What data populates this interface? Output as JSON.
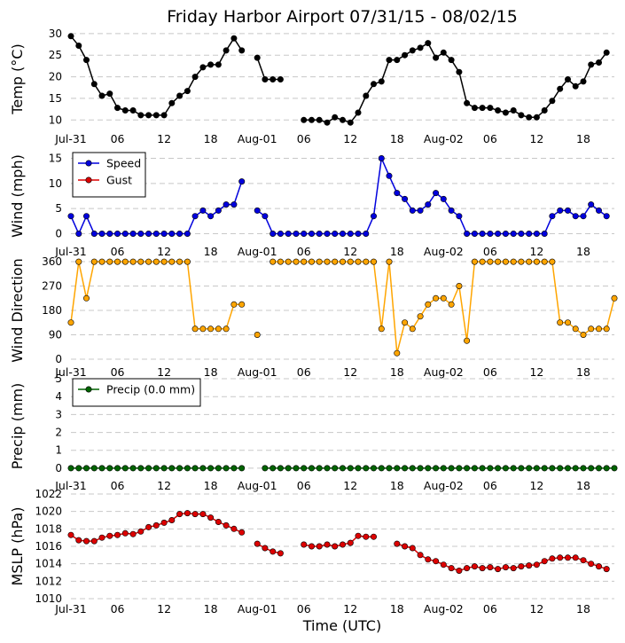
{
  "title": "Friday Harbor Airport 07/31/15 - 08/02/15",
  "xlabel": "Time (UTC)",
  "x_tick_labels": [
    "Jul-31",
    "06",
    "12",
    "18",
    "Aug-01",
    "06",
    "12",
    "18",
    "Aug-02",
    "06",
    "12",
    "18"
  ],
  "x_tick_hours": [
    0,
    6,
    12,
    18,
    24,
    30,
    36,
    42,
    48,
    54,
    60,
    66
  ],
  "x_range_hours": [
    0,
    70
  ],
  "colors": {
    "temp": "#000000",
    "speed": "#0000dd",
    "gust": "#dd0000",
    "dir": "#ffa500",
    "precip": "#006400",
    "mslp": "#dd0000"
  },
  "chart_data": [
    {
      "type": "line",
      "id": "temp",
      "ylabel": "Temp (°C)",
      "ylim": [
        8,
        31
      ],
      "yticks": [
        10,
        15,
        20,
        25,
        30
      ],
      "series": [
        {
          "name": "Temp",
          "x": [
            0,
            1,
            2,
            3,
            4,
            5,
            6,
            7,
            8,
            9,
            10,
            11,
            12,
            13,
            14,
            15,
            16,
            17,
            18,
            19,
            20,
            21,
            22,
            23,
            24,
            25,
            26,
            27,
            28,
            29,
            30,
            31,
            32,
            33,
            34,
            35,
            36,
            37,
            38,
            39,
            40,
            41,
            42,
            43,
            44,
            45,
            46,
            47,
            48,
            49,
            50,
            51,
            52,
            53,
            54,
            55,
            56,
            57,
            58,
            59,
            60,
            61,
            62,
            63,
            64,
            65,
            66,
            67,
            68,
            69,
            70
          ],
          "values": [
            29.4,
            27.2,
            23.9,
            18.3,
            15.6,
            16.1,
            12.8,
            12.2,
            12.2,
            11.1,
            11.1,
            11.1,
            11.1,
            13.9,
            15.6,
            16.7,
            20.0,
            22.2,
            22.8,
            22.8,
            26.1,
            28.9,
            26.1,
            null,
            24.4,
            19.4,
            19.4,
            19.4,
            null,
            null,
            10.0,
            10.0,
            10.0,
            9.4,
            10.6,
            10.0,
            9.4,
            11.7,
            15.6,
            18.3,
            18.9,
            23.9,
            23.9,
            25.0,
            26.1,
            26.7,
            27.8,
            24.4,
            25.6,
            23.9,
            21.1,
            13.9,
            12.8,
            12.8,
            12.8,
            12.2,
            11.7,
            12.2,
            11.1,
            10.6,
            10.6,
            12.2,
            14.4,
            17.2,
            19.4,
            17.8,
            18.9,
            22.8,
            23.3,
            25.6,
            null
          ]
        }
      ]
    },
    {
      "type": "line",
      "id": "wind",
      "ylabel": "Wind (mph)",
      "ylim": [
        -1.5,
        16.5
      ],
      "yticks": [
        0,
        5,
        10,
        15
      ],
      "legend": "top-left",
      "series": [
        {
          "name": "Speed",
          "x": [
            0,
            1,
            2,
            3,
            4,
            5,
            6,
            7,
            8,
            9,
            10,
            11,
            12,
            13,
            14,
            15,
            16,
            17,
            18,
            19,
            20,
            21,
            22,
            23,
            24,
            25,
            26,
            27,
            28,
            29,
            30,
            31,
            32,
            33,
            34,
            35,
            36,
            37,
            38,
            39,
            40,
            41,
            42,
            43,
            44,
            45,
            46,
            47,
            48,
            49,
            50,
            51,
            52,
            53,
            54,
            55,
            56,
            57,
            58,
            59,
            60,
            61,
            62,
            63,
            64,
            65,
            66,
            67,
            68,
            69,
            70
          ],
          "values": [
            3.5,
            0,
            3.5,
            0,
            0,
            0,
            0,
            0,
            0,
            0,
            0,
            0,
            0,
            0,
            0,
            0,
            3.5,
            4.6,
            3.5,
            4.6,
            5.8,
            5.8,
            10.4,
            null,
            4.6,
            3.5,
            0,
            0,
            0,
            0,
            0,
            0,
            0,
            0,
            0,
            0,
            0,
            0,
            0,
            3.5,
            15.0,
            11.5,
            8.1,
            6.9,
            4.6,
            4.6,
            5.8,
            8.1,
            6.9,
            4.6,
            3.5,
            0,
            0,
            0,
            0,
            0,
            0,
            0,
            0,
            0,
            0,
            0,
            3.5,
            4.6,
            4.6,
            3.5,
            3.5,
            5.8,
            4.6,
            3.5,
            null
          ]
        },
        {
          "name": "Gust",
          "x": [],
          "values": []
        }
      ]
    },
    {
      "type": "line",
      "id": "direction",
      "ylabel": "Wind Direction",
      "ylim": [
        -10,
        370
      ],
      "yticks": [
        0,
        90,
        180,
        270,
        360
      ],
      "series": [
        {
          "name": "Direction",
          "x": [
            0,
            1,
            2,
            3,
            4,
            5,
            6,
            7,
            8,
            9,
            10,
            11,
            12,
            13,
            14,
            15,
            16,
            17,
            18,
            19,
            20,
            21,
            22,
            23,
            24,
            25,
            26,
            27,
            28,
            29,
            30,
            31,
            32,
            33,
            34,
            35,
            36,
            37,
            38,
            39,
            40,
            41,
            42,
            43,
            44,
            45,
            46,
            47,
            48,
            49,
            50,
            51,
            52,
            53,
            54,
            55,
            56,
            57,
            58,
            59,
            60,
            61,
            62,
            63,
            64,
            65,
            66,
            67,
            68,
            69,
            70
          ],
          "values": [
            135,
            360,
            225,
            360,
            360,
            360,
            360,
            360,
            360,
            360,
            360,
            360,
            360,
            360,
            360,
            360,
            112,
            112,
            112,
            112,
            112,
            202,
            202,
            null,
            90,
            null,
            360,
            360,
            360,
            360,
            360,
            360,
            360,
            360,
            360,
            360,
            360,
            360,
            360,
            360,
            112,
            360,
            22,
            135,
            112,
            158,
            202,
            225,
            225,
            202,
            270,
            68,
            360,
            360,
            360,
            360,
            360,
            360,
            360,
            360,
            360,
            360,
            360,
            135,
            135,
            112,
            90,
            112,
            112,
            112,
            225
          ]
        }
      ]
    },
    {
      "type": "line",
      "id": "precip",
      "ylabel": "Precip (mm)",
      "ylim": [
        -0.4,
        5.1
      ],
      "yticks": [
        0,
        1,
        2,
        3,
        4,
        5
      ],
      "legend": "top-left",
      "series": [
        {
          "name": "Precip (0.0 mm)",
          "x": [
            0,
            1,
            2,
            3,
            4,
            5,
            6,
            7,
            8,
            9,
            10,
            11,
            12,
            13,
            14,
            15,
            16,
            17,
            18,
            19,
            20,
            21,
            22,
            23,
            24,
            25,
            26,
            27,
            28,
            29,
            30,
            31,
            32,
            33,
            34,
            35,
            36,
            37,
            38,
            39,
            40,
            41,
            42,
            43,
            44,
            45,
            46,
            47,
            48,
            49,
            50,
            51,
            52,
            53,
            54,
            55,
            56,
            57,
            58,
            59,
            60,
            61,
            62,
            63,
            64,
            65,
            66,
            67,
            68,
            69,
            70
          ],
          "values": [
            0,
            0,
            0,
            0,
            0,
            0,
            0,
            0,
            0,
            0,
            0,
            0,
            0,
            0,
            0,
            0,
            0,
            0,
            0,
            0,
            0,
            0,
            0,
            null,
            null,
            0,
            0,
            0,
            0,
            0,
            0,
            0,
            0,
            0,
            0,
            0,
            0,
            0,
            0,
            0,
            0,
            0,
            0,
            0,
            0,
            0,
            0,
            0,
            0,
            0,
            0,
            0,
            0,
            0,
            0,
            0,
            0,
            0,
            0,
            0,
            0,
            0,
            0,
            0,
            0,
            0,
            0,
            0,
            0,
            0,
            0
          ]
        }
      ]
    },
    {
      "type": "line",
      "id": "mslp",
      "ylabel": "MSLP (hPa)",
      "ylim": [
        1010,
        1022
      ],
      "yticks": [
        1010,
        1012,
        1014,
        1016,
        1018,
        1020,
        1022
      ],
      "series": [
        {
          "name": "MSLP",
          "x": [
            0,
            1,
            2,
            3,
            4,
            5,
            6,
            7,
            8,
            9,
            10,
            11,
            12,
            13,
            14,
            15,
            16,
            17,
            18,
            19,
            20,
            21,
            22,
            23,
            24,
            25,
            26,
            27,
            28,
            29,
            30,
            31,
            32,
            33,
            34,
            35,
            36,
            37,
            38,
            39,
            40,
            41,
            42,
            43,
            44,
            45,
            46,
            47,
            48,
            49,
            50,
            51,
            52,
            53,
            54,
            55,
            56,
            57,
            58,
            59,
            60,
            61,
            62,
            63,
            64,
            65,
            66,
            67,
            68,
            69,
            70
          ],
          "values": [
            1017.3,
            1016.7,
            1016.6,
            1016.6,
            1017.0,
            1017.2,
            1017.3,
            1017.5,
            1017.4,
            1017.7,
            1018.2,
            1018.4,
            1018.7,
            1019.0,
            1019.7,
            1019.8,
            1019.7,
            1019.7,
            1019.3,
            1018.8,
            1018.4,
            1018.0,
            1017.6,
            null,
            1016.3,
            1015.8,
            1015.4,
            1015.2,
            null,
            null,
            1016.2,
            1016.0,
            1016.0,
            1016.2,
            1016.0,
            1016.2,
            1016.4,
            1017.2,
            1017.1,
            1017.1,
            null,
            null,
            1016.3,
            1016.0,
            1015.8,
            1015.0,
            1014.5,
            1014.3,
            1013.9,
            1013.5,
            1013.2,
            1013.5,
            1013.7,
            1013.5,
            1013.6,
            1013.4,
            1013.6,
            1013.5,
            1013.7,
            1013.8,
            1013.9,
            1014.3,
            1014.6,
            1014.7,
            1014.7,
            1014.7,
            1014.4,
            1014.0,
            1013.7,
            1013.4,
            null
          ]
        }
      ]
    }
  ]
}
